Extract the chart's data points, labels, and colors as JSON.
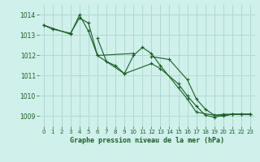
{
  "title": "Graphe pression niveau de la mer (hPa)",
  "bg_color": "#cff0eb",
  "grid_color": "#b0d8d2",
  "line_color": "#1a5e20",
  "xlim": [
    -0.5,
    23.5
  ],
  "ylim": [
    1008.5,
    1014.5
  ],
  "yticks": [
    1009,
    1010,
    1011,
    1012,
    1013,
    1014
  ],
  "xticks": [
    0,
    1,
    2,
    3,
    4,
    5,
    6,
    7,
    8,
    9,
    10,
    11,
    12,
    13,
    14,
    15,
    16,
    17,
    18,
    19,
    20,
    21,
    22,
    23
  ],
  "series": [
    [
      0,
      1013.5
    ],
    [
      1,
      1013.3
    ],
    [
      3,
      1013.1
    ],
    [
      4,
      1013.85
    ],
    [
      5,
      1013.6
    ],
    [
      6,
      1012.0
    ],
    [
      9,
      1011.1
    ],
    [
      10,
      1012.0
    ],
    [
      11,
      1012.4
    ],
    [
      12,
      1012.1
    ],
    [
      13,
      1011.5
    ],
    [
      15,
      1010.4
    ],
    [
      16,
      1009.85
    ],
    [
      17,
      1009.2
    ],
    [
      19,
      1009.05
    ],
    [
      20,
      1009.0
    ],
    [
      21,
      1009.1
    ],
    [
      22,
      1009.1
    ],
    [
      23,
      1009.1
    ]
  ],
  "series2_pts": [
    [
      0,
      1013.5
    ],
    [
      3,
      1013.05
    ],
    [
      4,
      1014.0
    ],
    [
      5,
      1013.2
    ],
    [
      6,
      1012.0
    ],
    [
      10,
      1012.1
    ]
  ],
  "series3_pts": [
    [
      6,
      1012.85
    ],
    [
      7,
      1011.7
    ],
    [
      8,
      1011.5
    ],
    [
      9,
      1011.1
    ],
    [
      12,
      1011.6
    ],
    [
      13,
      1011.35
    ],
    [
      15,
      1010.6
    ],
    [
      16,
      1010.0
    ],
    [
      17,
      1009.5
    ],
    [
      18,
      1009.05
    ],
    [
      19,
      1008.95
    ],
    [
      20,
      1009.05
    ],
    [
      21,
      1009.1
    ],
    [
      22,
      1009.1
    ],
    [
      23,
      1009.1
    ]
  ],
  "series4_pts": [
    [
      12,
      1011.95
    ],
    [
      14,
      1011.8
    ],
    [
      16,
      1010.8
    ],
    [
      17,
      1009.85
    ],
    [
      18,
      1009.35
    ],
    [
      19,
      1009.05
    ],
    [
      20,
      1009.1
    ],
    [
      21,
      1009.1
    ],
    [
      22,
      1009.1
    ],
    [
      23,
      1009.1
    ]
  ]
}
